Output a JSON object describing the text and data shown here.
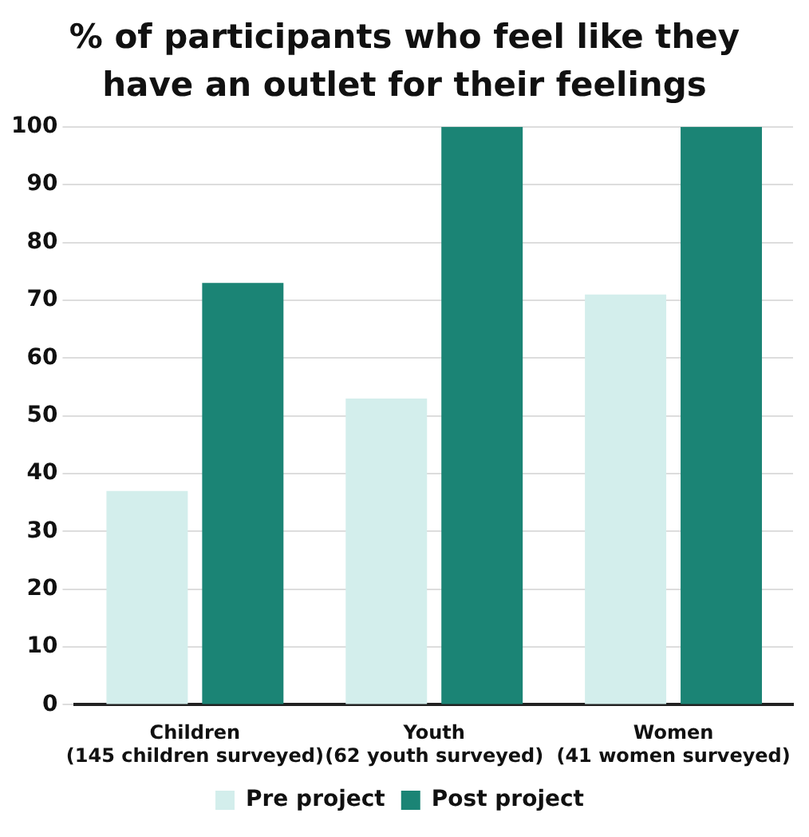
{
  "chart_data": {
    "type": "bar",
    "title": "% of participants who feel like they\nhave an outlet for their feelings",
    "categories": [
      "Children\n(145 children surveyed)",
      "Youth\n(62 youth surveyed)",
      "Women\n(41 women surveyed)"
    ],
    "series": [
      {
        "name": "Pre project",
        "color": "#d3eeec",
        "values": [
          37,
          53,
          71
        ]
      },
      {
        "name": "Post project",
        "color": "#1b8475",
        "values": [
          73,
          100,
          100
        ]
      }
    ],
    "ylim": [
      0,
      100
    ],
    "yticks": [
      0,
      10,
      20,
      30,
      40,
      50,
      60,
      70,
      80,
      90,
      100
    ],
    "grid": "y",
    "legend": "bottom"
  }
}
